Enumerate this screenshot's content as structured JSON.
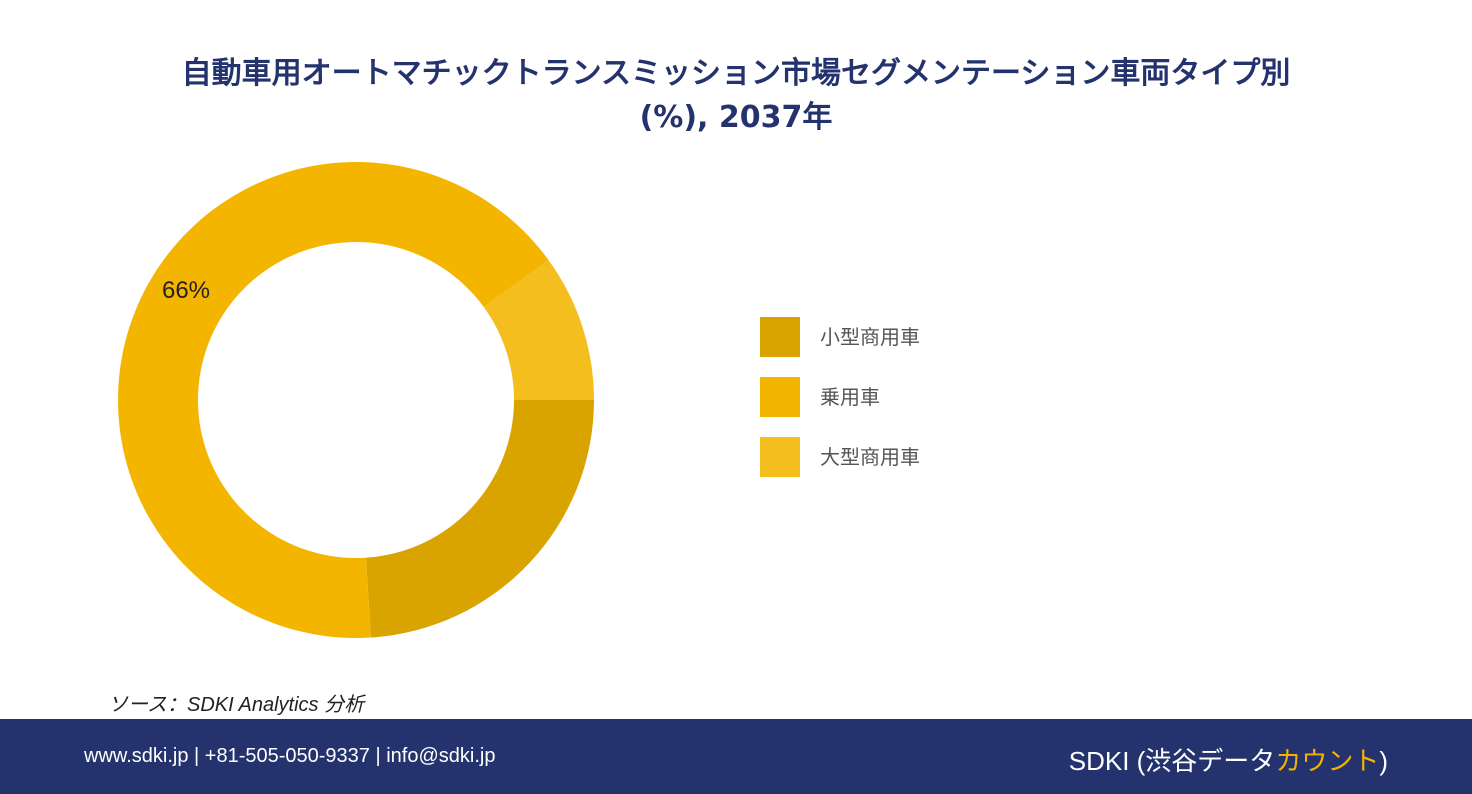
{
  "title_line1": "自動車用オートマチックトランスミッション市場セグメンテーション車両タイプ別",
  "title_line2": "(%), 2037年",
  "source": "ソース：SDKI Analytics 分析",
  "footer": {
    "contact": "www.sdki.jp | +81-505-050-9337 | info@sdki.jp",
    "brand_prefix": "SDKI (渋谷データ",
    "brand_accent": "カウント",
    "brand_suffix": ")"
  },
  "chart_data": {
    "type": "pie",
    "donut": true,
    "start": "right (3 o'clock), clockwise",
    "categories": [
      "小型商用車",
      "乗用車",
      "大型商用車"
    ],
    "values": [
      24,
      66,
      10
    ],
    "colors": [
      "#daa400",
      "#f4b500",
      "#f4be1e"
    ],
    "data_labels": [
      "",
      "66%",
      ""
    ],
    "legend": "right"
  }
}
